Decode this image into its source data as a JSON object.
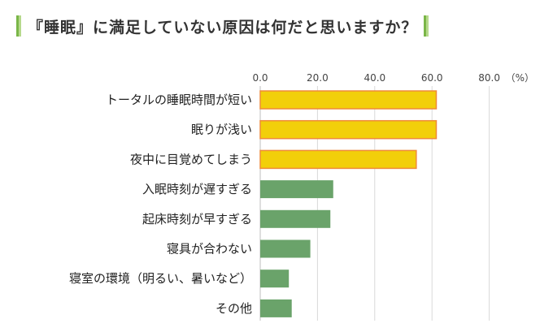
{
  "header": {
    "title": "『睡眠』に満足していない原因は何だと思いますか？"
  },
  "colors": {
    "accent": "#7ab648",
    "accent_light": "#b6d98c",
    "highlight_fill": "#f2cf0a",
    "highlight_stroke": "#ef8b3a",
    "normal_fill": "#6aa36a",
    "grid": "#d9d9d9"
  },
  "chart_data": {
    "type": "bar",
    "orientation": "horizontal",
    "title": "『睡眠』に満足していない原因は何だと思いますか？",
    "unit": "（%）",
    "xlim": [
      0,
      80
    ],
    "ticks": [
      0,
      20,
      40,
      60,
      80
    ],
    "tick_labels": [
      "0.0",
      "20.0",
      "40.0",
      "60.0",
      "80.0"
    ],
    "categories": [
      "トータルの睡眠時間が短い",
      "眠りが浅い",
      "夜中に目覚めてしまう",
      "入眠時刻が遅すぎる",
      "起床時刻が早すぎる",
      "寝具が合わない",
      "寝室の環境（明るい、暑いなど）",
      "その他"
    ],
    "values": [
      61.5,
      61.5,
      54.5,
      25.5,
      24.5,
      17.5,
      10.0,
      11.0
    ],
    "highlighted": [
      true,
      true,
      true,
      false,
      false,
      false,
      false,
      false
    ],
    "grid": true
  }
}
